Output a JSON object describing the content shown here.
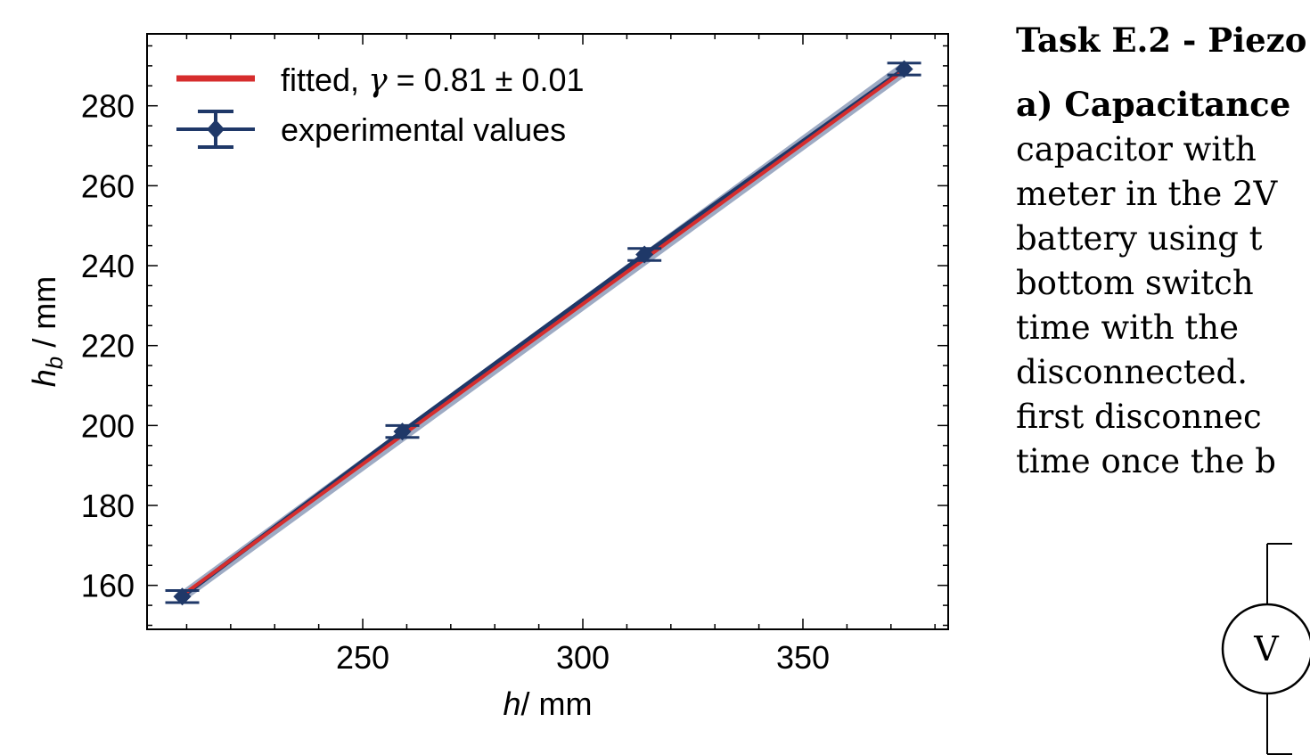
{
  "chart_data": {
    "type": "scatter",
    "xlabel": "h/ mm",
    "ylabel": "h_b / mm",
    "xlim": [
      201,
      383
    ],
    "ylim": [
      149,
      298
    ],
    "xticks": [
      250,
      300,
      350
    ],
    "yticks": [
      160,
      180,
      200,
      220,
      240,
      260,
      280
    ],
    "grid": false,
    "legend_position": "top-left",
    "series": [
      {
        "name": "experimental values",
        "color": "#1f3868",
        "marker": "diamond",
        "x": [
          209,
          259,
          314,
          373
        ],
        "y": [
          157.2,
          198.5,
          242.8,
          289.2
        ],
        "yerr": [
          1.5,
          1.5,
          1.5,
          1.5
        ]
      }
    ],
    "fit": {
      "name_prefix": "fitted, ",
      "gamma_symbol": "γ",
      "value_text": " = 0.81 ± 0.01",
      "color": "#d62d2d",
      "x_start": 209,
      "y_start": 157.5,
      "x_end": 373,
      "y_end": 288.9,
      "band_color": "#7d8fb0"
    },
    "experimental_line_color": "#1f3868"
  },
  "document": {
    "task_title": "Task E.2 - Piezo",
    "part_label": "a) Capacitance",
    "lines": [
      "capacitor with",
      "meter in the 2V",
      "battery using t",
      "bottom switch",
      "time with the",
      "disconnected.",
      "first disconnec",
      "time once the b"
    ]
  },
  "circuit": {
    "voltmeter_label": "V"
  }
}
